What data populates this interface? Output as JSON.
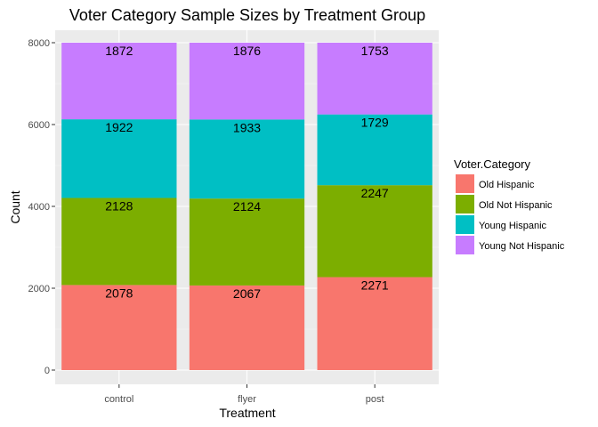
{
  "chart_data": {
    "type": "bar",
    "stacked": true,
    "title": "Voter Category Sample Sizes by Treatment Group",
    "xlabel": "Treatment",
    "ylabel": "Count",
    "categories": [
      "control",
      "flyer",
      "post"
    ],
    "ylim": [
      0,
      8000
    ],
    "yticks": [
      0,
      2000,
      4000,
      6000,
      8000
    ],
    "grid": true,
    "legend": {
      "title": "Voter.Category",
      "position": "right"
    },
    "series": [
      {
        "name": "Old Hispanic",
        "color": "#F8766D",
        "values": [
          2078,
          2067,
          2271
        ]
      },
      {
        "name": "Old Not Hispanic",
        "color": "#7CAE00",
        "values": [
          2128,
          2124,
          2247
        ]
      },
      {
        "name": "Young Hispanic",
        "color": "#00BFC4",
        "values": [
          1922,
          1933,
          1729
        ]
      },
      {
        "name": "Young Not Hispanic",
        "color": "#C77CFF",
        "values": [
          1872,
          1876,
          1753
        ]
      }
    ]
  }
}
